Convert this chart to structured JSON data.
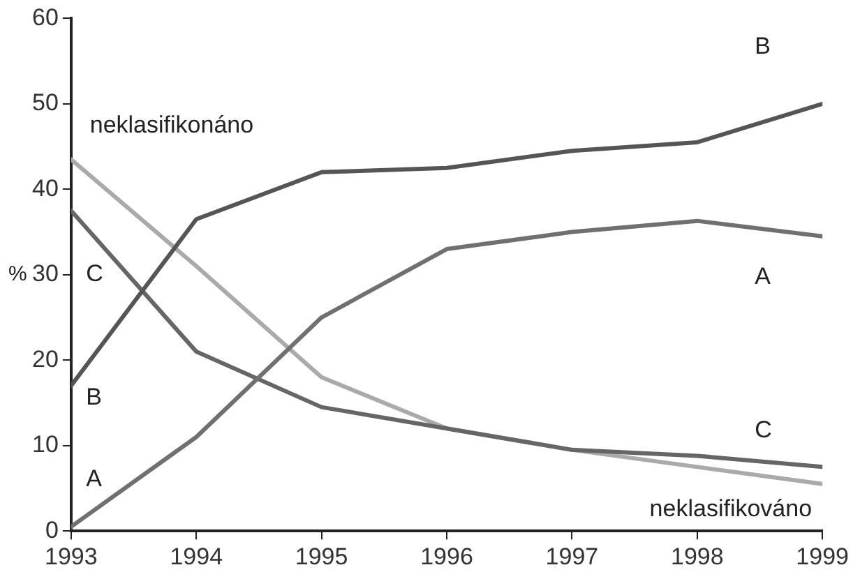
{
  "chart_data": {
    "type": "line",
    "ylabel": "%",
    "x": [
      1993,
      1994,
      1995,
      1996,
      1997,
      1998,
      1999
    ],
    "xlim": [
      1993,
      1999
    ],
    "xticks": [
      1993,
      1994,
      1995,
      1996,
      1997,
      1998,
      1999
    ],
    "ylim": [
      0,
      60
    ],
    "yticks": [
      0,
      10,
      20,
      30,
      40,
      50,
      60
    ],
    "grid": false,
    "legend": false,
    "marker": "none",
    "line_style": "solid",
    "series": [
      {
        "name": "B",
        "color": "#555555",
        "values": [
          17,
          36.5,
          42,
          42.5,
          44.5,
          45.5,
          50
        ]
      },
      {
        "name": "A",
        "color": "#707070",
        "values": [
          0.5,
          11,
          25,
          33,
          35,
          36.3,
          34.5
        ]
      },
      {
        "name": "C",
        "color": "#666666",
        "values": [
          37.5,
          21,
          14.5,
          12,
          9.5,
          8.8,
          7.5
        ]
      },
      {
        "name": "neklasifikováno",
        "color": "#aaaaaa",
        "values": [
          43.5,
          31,
          18,
          12,
          9.5,
          7.5,
          5.5
        ]
      }
    ],
    "annotations": [
      "neklasifikonáno",
      "C",
      "B",
      "A"
    ]
  }
}
